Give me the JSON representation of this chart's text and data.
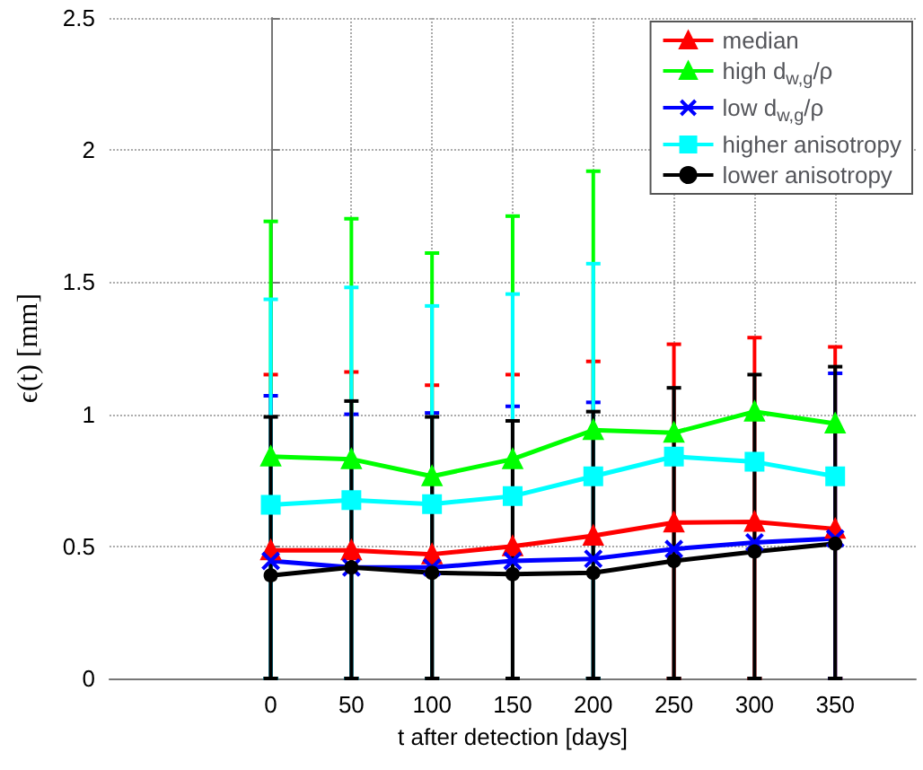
{
  "chart_data": {
    "type": "line",
    "xlabel": "t after detection [days]",
    "ylabel": "ϵ(t) [mm]",
    "x": [
      0,
      50,
      100,
      150,
      200,
      250,
      300,
      350
    ],
    "xlim": [
      -100,
      400
    ],
    "xticks": [
      0,
      50,
      100,
      150,
      200,
      250,
      300,
      350
    ],
    "ylim": [
      0,
      2.5
    ],
    "yticks": [
      0,
      0.5,
      1,
      1.5,
      2,
      2.5
    ],
    "grid": true,
    "legend": "top right",
    "line_style": "solid",
    "series": [
      {
        "name": "median",
        "color": "#ff0000",
        "marker": "triangle",
        "values": [
          0.485,
          0.485,
          0.47,
          0.5,
          0.54,
          0.59,
          0.593,
          0.566
        ],
        "errors": [
          [
            0,
            1.15
          ],
          [
            0,
            1.16
          ],
          [
            0,
            1.11
          ],
          [
            0,
            1.15
          ],
          [
            0,
            1.2
          ],
          [
            0,
            1.265
          ],
          [
            0,
            1.29
          ],
          [
            0,
            1.255
          ]
        ]
      },
      {
        "name": "high d$_{w,g}$/ρ",
        "color": "#00ff00",
        "marker": "triangle",
        "values": [
          0.84,
          0.83,
          0.765,
          0.83,
          0.94,
          0.93,
          1.01,
          0.965
        ],
        "errors": [
          [
            0,
            1.73
          ],
          [
            0,
            1.74
          ],
          [
            0,
            1.61
          ],
          [
            0,
            1.75
          ],
          [
            0,
            1.92
          ],
          null,
          null,
          null
        ]
      },
      {
        "name": "low d$_{w,g}$/ρ",
        "color": "#0000ff",
        "marker": "cross",
        "values": [
          0.445,
          0.42,
          0.42,
          0.445,
          0.453,
          0.49,
          0.515,
          0.53
        ],
        "errors": [
          [
            0,
            1.07
          ],
          [
            0,
            1.0
          ],
          [
            0,
            1.005
          ],
          [
            0,
            1.03
          ],
          [
            0,
            1.045
          ],
          null,
          null,
          [
            0,
            1.155
          ]
        ]
      },
      {
        "name": "higher anisotropy",
        "color": "#00ffff",
        "marker": "square",
        "values": [
          0.657,
          0.675,
          0.66,
          0.69,
          0.765,
          0.84,
          0.82,
          0.765
        ],
        "errors": [
          [
            0,
            1.435
          ],
          [
            0,
            1.48
          ],
          [
            0,
            1.41
          ],
          [
            0,
            1.455
          ],
          [
            0,
            1.57
          ],
          null,
          null,
          null
        ]
      },
      {
        "name": "lower anisotropy",
        "color": "#000000",
        "marker": "circle",
        "values": [
          0.39,
          0.42,
          0.4,
          0.395,
          0.4,
          0.445,
          0.48,
          0.51
        ],
        "errors": [
          [
            0,
            0.99
          ],
          [
            0,
            1.05
          ],
          [
            0,
            0.99
          ],
          [
            0,
            0.975
          ],
          [
            0,
            1.01
          ],
          [
            0,
            1.1
          ],
          [
            0,
            1.15
          ],
          [
            0,
            1.18
          ]
        ]
      }
    ]
  }
}
